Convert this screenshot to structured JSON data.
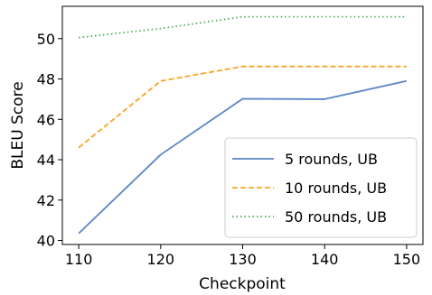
{
  "chart_data": {
    "type": "line",
    "title": "",
    "xlabel": "Checkpoint",
    "ylabel": "BLEU Score",
    "x": [
      110,
      120,
      130,
      140,
      150
    ],
    "x_ticks": [
      "110",
      "120",
      "130",
      "140",
      "150"
    ],
    "y_ticks": [
      "40",
      "42",
      "44",
      "46",
      "48",
      "50"
    ],
    "xlim": [
      108,
      152
    ],
    "ylim": [
      39.8,
      51.6
    ],
    "grid": false,
    "legend_position": "bottom-right",
    "series": [
      {
        "name": "5 rounds, UB",
        "values": [
          40.35,
          44.25,
          47.02,
          47.0,
          47.9
        ],
        "color": "#5b85c6",
        "dash": "solid"
      },
      {
        "name": "10 rounds, UB",
        "values": [
          44.6,
          47.9,
          48.62,
          48.62,
          48.62
        ],
        "color": "#f5a623",
        "dash": "dashed"
      },
      {
        "name": "50 rounds, UB",
        "values": [
          50.05,
          50.5,
          51.08,
          51.08,
          51.08
        ],
        "color": "#4caf50",
        "dash": "dotted"
      }
    ]
  }
}
